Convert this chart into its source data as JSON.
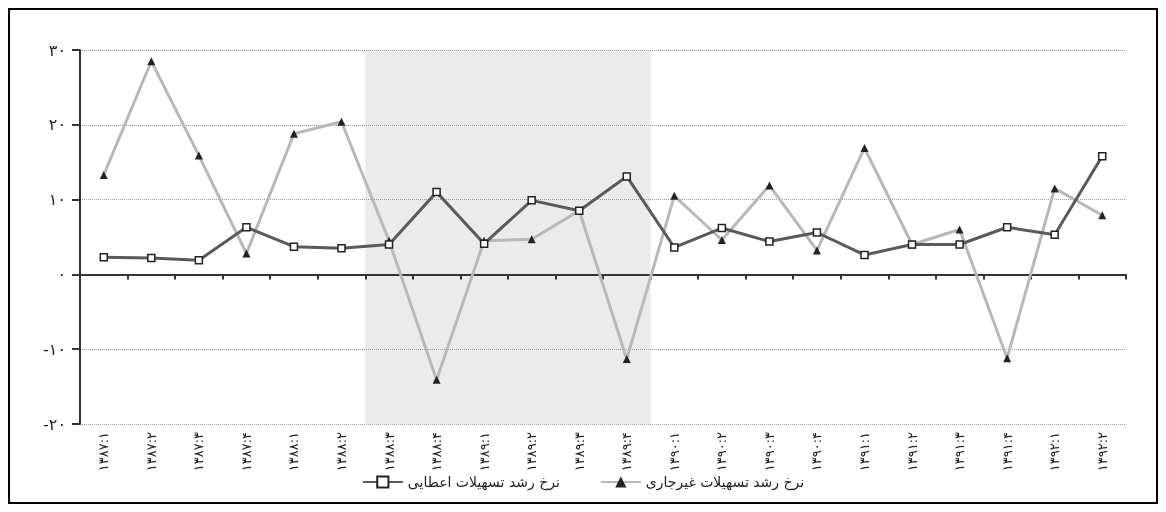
{
  "chart_data": {
    "type": "line",
    "categories": [
      "۱۳۸۷:۱",
      "۱۳۸۷:۲",
      "۱۳۸۷:۳",
      "۱۳۸۷:۴",
      "۱۳۸۸:۱",
      "۱۳۸۸:۲",
      "۱۳۸۸:۳",
      "۱۳۸۸:۴",
      "۱۳۸۹:۱",
      "۱۳۸۹:۲",
      "۱۳۸۹:۳",
      "۱۳۸۹:۴",
      "۱۳۹۰:۱",
      "۱۳۹۰:۲",
      "۱۳۹۰:۳",
      "۱۳۹۰:۴",
      "۱۳۹۱:۱",
      "۱۳۹۱:۲",
      "۱۳۹۱:۳",
      "۱۳۹۱:۴",
      "۱۳۹۲:۱",
      "۱۳۹۲:۲"
    ],
    "series": [
      {
        "name": "نرخ رشد تسهیلات غیرجاری",
        "color": "#b8b8b8",
        "marker": "triangle",
        "values": [
          13.3,
          28.5,
          15.9,
          2.8,
          18.8,
          20.4,
          4.5,
          -14.1,
          4.5,
          4.7,
          8.5,
          -11.3,
          10.5,
          4.6,
          11.9,
          3.2,
          16.9,
          4.0,
          6.0,
          -11.2,
          11.5,
          7.9
        ]
      },
      {
        "name": "نرخ رشد تسهیلات اعطایی",
        "color": "#5a5a5a",
        "marker": "square",
        "values": [
          2.3,
          2.2,
          1.9,
          6.3,
          3.7,
          3.5,
          4.0,
          11.0,
          4.1,
          9.9,
          8.5,
          13.1,
          3.6,
          6.2,
          4.4,
          5.6,
          2.6,
          4.0,
          4.0,
          6.3,
          5.3,
          15.8
        ]
      }
    ],
    "ylim": [
      -20,
      30
    ],
    "yticks": [
      {
        "value": -20,
        "label": "-۲۰"
      },
      {
        "value": -10,
        "label": "-۱۰"
      },
      {
        "value": 0,
        "label": "۰"
      },
      {
        "value": 10,
        "label": "۱۰"
      },
      {
        "value": 20,
        "label": "۲۰"
      },
      {
        "value": 30,
        "label": "۳۰"
      }
    ],
    "bands": [
      {
        "axis": "x",
        "from": "۱۳۸۸:۳",
        "to": "۱۳۸۹:۴",
        "color": "#ebebeb"
      }
    ],
    "grid": "y",
    "legend": "bottom",
    "line_style": "solid"
  }
}
